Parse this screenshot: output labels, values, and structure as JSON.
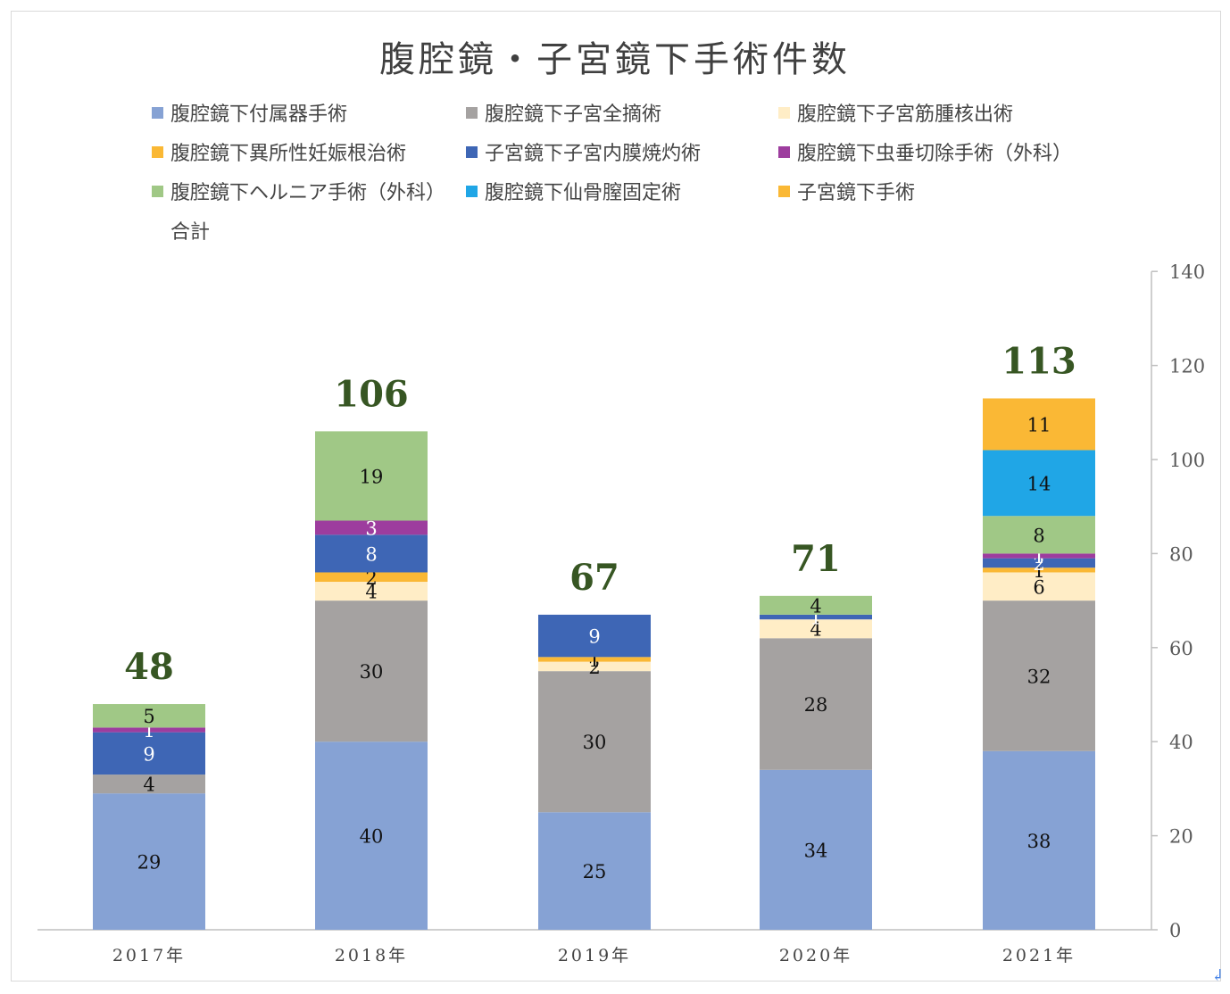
{
  "title": "腹腔鏡・子宮鏡下手術件数",
  "chart_data": {
    "type": "bar",
    "stacked": true,
    "title": "腹腔鏡・子宮鏡下手術件数",
    "categories": [
      "2017年",
      "2018年",
      "2019年",
      "2020年",
      "2021年"
    ],
    "y_axis": {
      "min": 0,
      "max": 140,
      "ticks": [
        0,
        20,
        40,
        60,
        80,
        100,
        120,
        140
      ],
      "position": "right",
      "grid": false
    },
    "series": [
      {
        "name": "腹腔鏡下付属器手術",
        "color": "#86A2D4",
        "values": [
          29,
          40,
          25,
          34,
          38
        ]
      },
      {
        "name": "腹腔鏡下子宮全摘術",
        "color": "#A5A2A1",
        "values": [
          4,
          30,
          30,
          28,
          32
        ]
      },
      {
        "name": "腹腔鏡下子宮筋腫核出術",
        "color": "#FFEDC6",
        "values": [
          null,
          4,
          2,
          4,
          6
        ]
      },
      {
        "name": "腹腔鏡下異所性妊娠根治術",
        "color": "#FAB835",
        "values": [
          null,
          2,
          1,
          null,
          1
        ]
      },
      {
        "name": "子宮鏡下子宮内膜焼灼術",
        "color": "#3E66B5",
        "values": [
          9,
          8,
          9,
          1,
          2
        ]
      },
      {
        "name": "腹腔鏡下虫垂切除手術（外科）",
        "color": "#9D3D9E",
        "values": [
          1,
          3,
          null,
          null,
          1
        ]
      },
      {
        "name": "腹腔鏡下ヘルニア手術（外科）",
        "color": "#A0C886",
        "values": [
          5,
          19,
          null,
          4,
          8
        ]
      },
      {
        "name": "腹腔鏡下仙骨膣固定術",
        "color": "#20A6E6",
        "values": [
          null,
          null,
          null,
          null,
          14
        ]
      },
      {
        "name": "子宮鏡下手術",
        "color": "#FAB835",
        "values": [
          null,
          null,
          null,
          null,
          11
        ]
      }
    ],
    "totals_series": {
      "name": "合計",
      "values": [
        48,
        106,
        67,
        71,
        113
      ],
      "label_color": "#375623"
    },
    "legend_position": "top"
  }
}
